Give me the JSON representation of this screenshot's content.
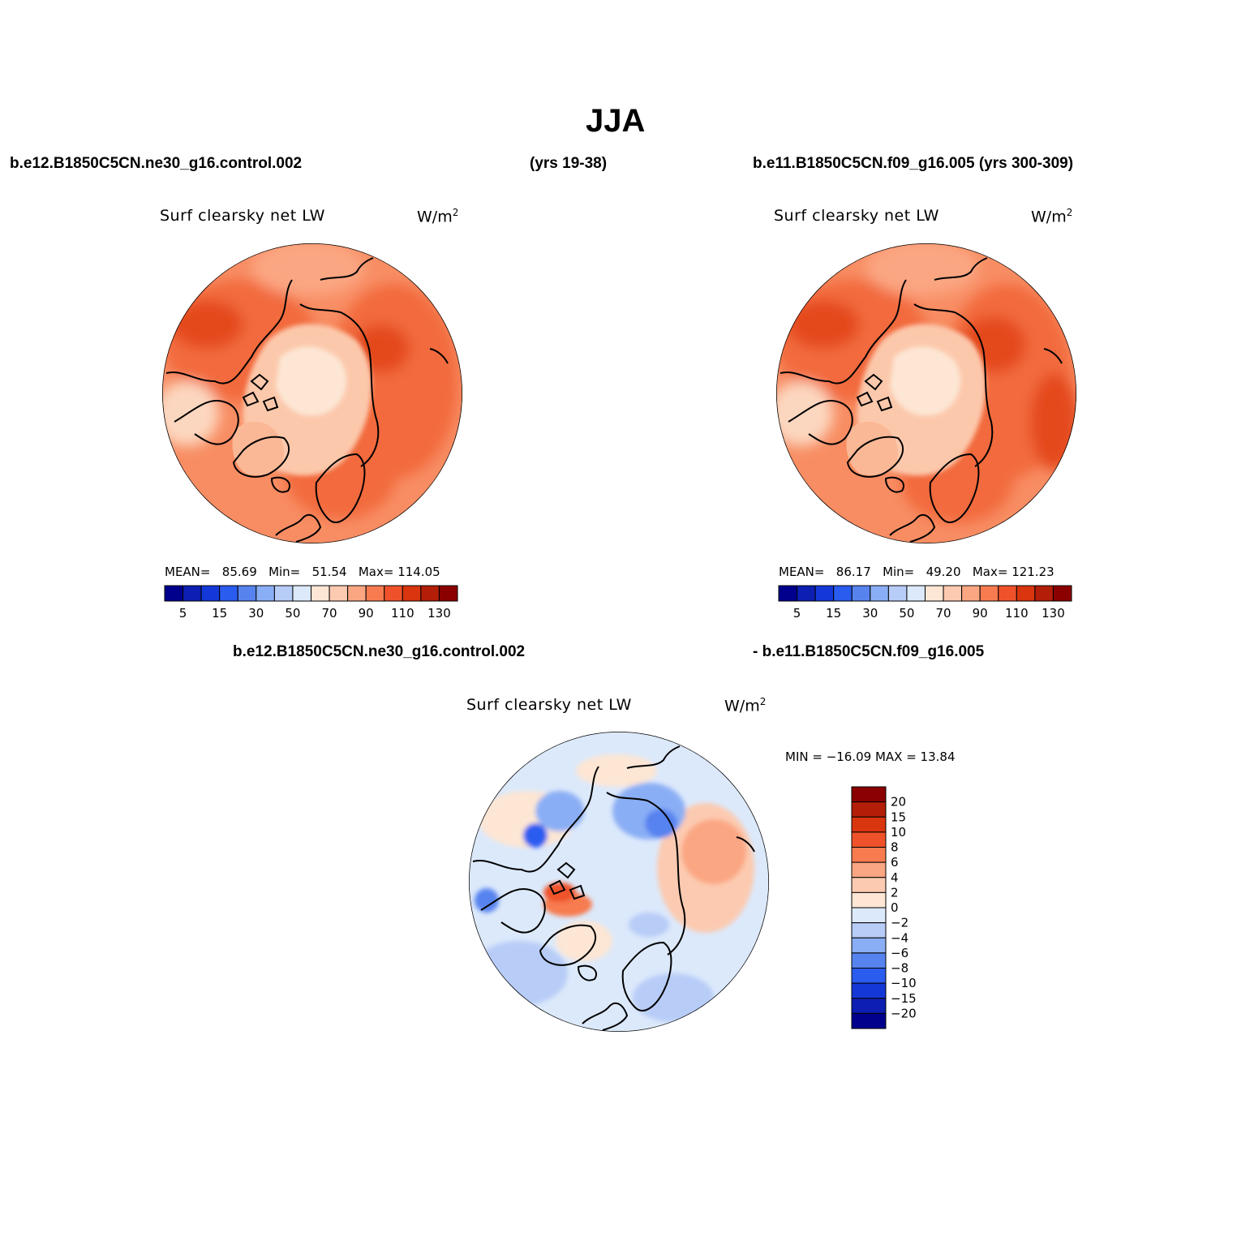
{
  "figure": {
    "season": "JJA",
    "case_a_label": "b.e12.B1850C5CN.ne30_g16.control.002",
    "case_a_years": "(yrs 19-38)",
    "case_b_label": "b.e11.B1850C5CN.f09_g16.005 (yrs 300-309)",
    "diff_label_left": "b.e12.B1850C5CN.ne30_g16.control.002",
    "diff_label_right": "- b.e11.B1850C5CN.f09_g16.005"
  },
  "panels": [
    {
      "variable": "Surf clearsky net LW",
      "units": "W/m",
      "units_exp": "2",
      "mean_label": "MEAN=",
      "mean": "85.69",
      "min_label": "Min=",
      "min": "51.54",
      "max_label": "Max=",
      "max": "114.05"
    },
    {
      "variable": "Surf clearsky net LW",
      "units": "W/m",
      "units_exp": "2",
      "mean_label": "MEAN=",
      "mean": "86.17",
      "min_label": "Min=",
      "min": "49.20",
      "max_label": "Max=",
      "max": "121.23"
    },
    {
      "variable": "Surf clearsky net LW",
      "units": "W/m",
      "units_exp": "2",
      "minmax_text": "MIN = −16.09 MAX =   13.84"
    }
  ],
  "colorbar_abs": {
    "colors": [
      "#00008c",
      "#0c1fb2",
      "#1438d8",
      "#2a5cf0",
      "#5783ef",
      "#8aaef5",
      "#b7ccf7",
      "#dce9fb",
      "#fde6d4",
      "#fccab0",
      "#fba682",
      "#f77b4f",
      "#ef522a",
      "#d9350e",
      "#b31e08",
      "#8b0000"
    ],
    "tick_labels": [
      "5",
      "15",
      "30",
      "50",
      "70",
      "90",
      "110",
      "130"
    ]
  },
  "colorbar_diff": {
    "colors": [
      "#8b0000",
      "#b31e08",
      "#d9350e",
      "#ef522a",
      "#f77b4f",
      "#fba682",
      "#fccab0",
      "#fde6d4",
      "#dce9fb",
      "#b7ccf7",
      "#8aaef5",
      "#5783ef",
      "#2a5cf0",
      "#1438d8",
      "#0c1fb2",
      "#00008c"
    ],
    "tick_labels": [
      "20",
      "15",
      "10",
      "8",
      "6",
      "4",
      "2",
      "0",
      "−2",
      "−4",
      "−6",
      "−8",
      "−10",
      "−15",
      "−20"
    ]
  }
}
